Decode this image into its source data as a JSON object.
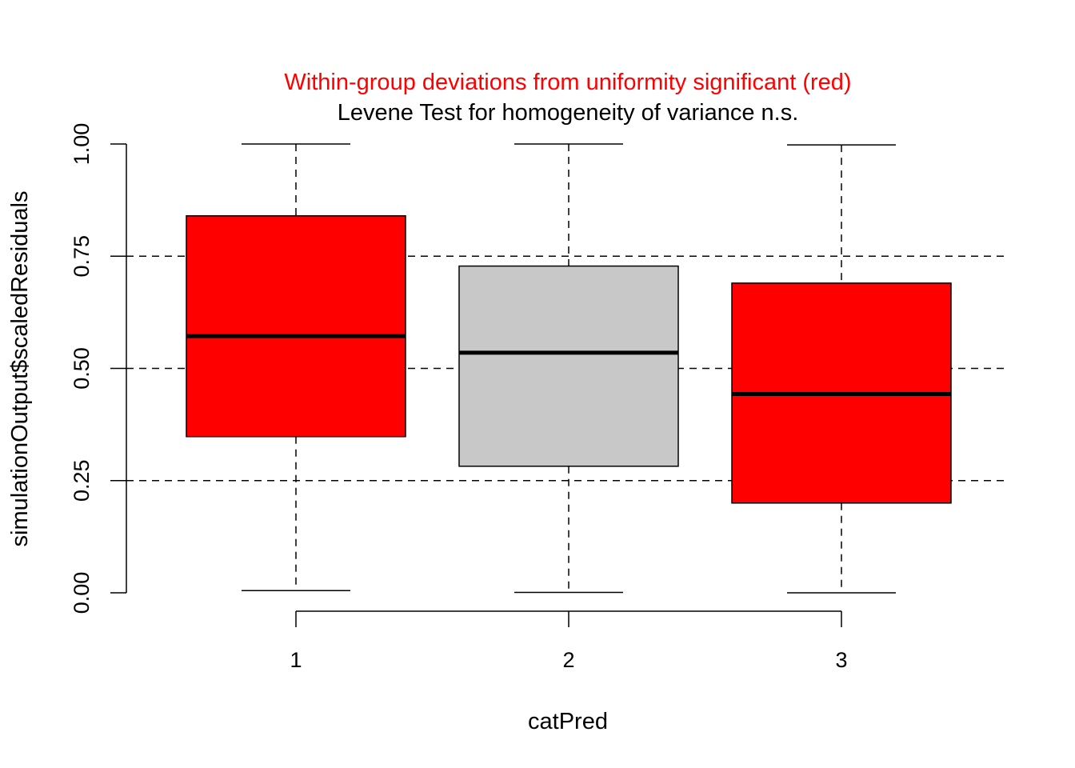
{
  "chart_data": {
    "type": "boxplot",
    "title_line1": "Within-group deviations from uniformity significant (red)",
    "title_line2": "Levene Test for homogeneity of variance n.s.",
    "xlabel": "catPred",
    "ylabel": "simulationOutput$scaledResiduals",
    "categories": [
      "1",
      "2",
      "3"
    ],
    "yticks": [
      "0.00",
      "0.25",
      "0.50",
      "0.75",
      "1.00"
    ],
    "ylim": [
      0,
      1
    ],
    "reference_lines": [
      0.25,
      0.5,
      0.75
    ],
    "groups": [
      {
        "category": "1",
        "min": 0.005,
        "q1": 0.348,
        "median": 0.572,
        "q3": 0.84,
        "max": 1.0,
        "significant": true
      },
      {
        "category": "2",
        "min": 0.001,
        "q1": 0.282,
        "median": 0.535,
        "q3": 0.728,
        "max": 1.0,
        "significant": false
      },
      {
        "category": "3",
        "min": 0.0,
        "q1": 0.2,
        "median": 0.443,
        "q3": 0.69,
        "max": 0.998,
        "significant": true
      }
    ],
    "colors": {
      "significant_fill": "#ff0000",
      "normal_fill": "#c8c8c8",
      "title_highlight": "#ff0000",
      "text": "#000000"
    }
  }
}
